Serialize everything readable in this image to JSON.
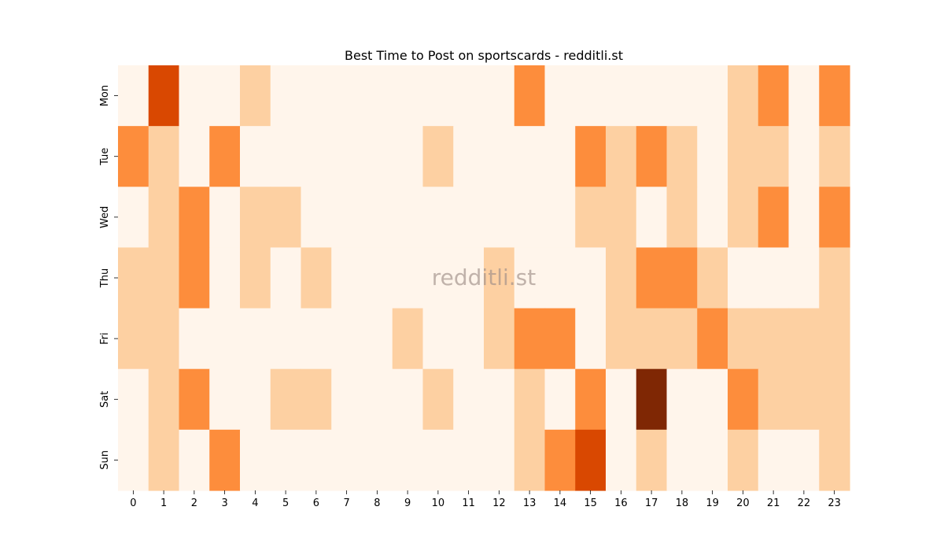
{
  "chart_data": {
    "type": "heatmap",
    "title": "Best Time to Post on sportscards - redditli.st",
    "watermark": "redditli.st",
    "xlabel": "",
    "ylabel": "",
    "x_categories": [
      "0",
      "1",
      "2",
      "3",
      "4",
      "5",
      "6",
      "7",
      "8",
      "9",
      "10",
      "11",
      "12",
      "13",
      "14",
      "15",
      "16",
      "17",
      "18",
      "19",
      "20",
      "21",
      "22",
      "23"
    ],
    "y_categories": [
      "Mon",
      "Tue",
      "Wed",
      "Thu",
      "Fri",
      "Sat",
      "Sun"
    ],
    "color_levels": [
      "#fff5eb",
      "#fdd0a2",
      "#fd8d3c",
      "#d94801",
      "#7f2704"
    ],
    "values": [
      [
        0,
        3,
        0,
        0,
        1,
        0,
        0,
        0,
        0,
        0,
        0,
        0,
        0,
        2,
        0,
        0,
        0,
        0,
        0,
        0,
        1,
        2,
        0,
        2
      ],
      [
        2,
        1,
        0,
        2,
        0,
        0,
        0,
        0,
        0,
        0,
        1,
        0,
        0,
        0,
        0,
        2,
        1,
        2,
        1,
        0,
        1,
        1,
        0,
        1
      ],
      [
        0,
        1,
        2,
        0,
        1,
        1,
        0,
        0,
        0,
        0,
        0,
        0,
        0,
        0,
        0,
        1,
        1,
        0,
        1,
        0,
        1,
        2,
        0,
        2
      ],
      [
        1,
        1,
        2,
        0,
        1,
        0,
        1,
        0,
        0,
        0,
        0,
        0,
        1,
        0,
        0,
        0,
        1,
        2,
        2,
        1,
        0,
        0,
        0,
        1
      ],
      [
        1,
        1,
        0,
        0,
        0,
        0,
        0,
        0,
        0,
        1,
        0,
        0,
        1,
        2,
        2,
        0,
        1,
        1,
        1,
        2,
        1,
        1,
        1,
        1
      ],
      [
        0,
        1,
        2,
        0,
        0,
        1,
        1,
        0,
        0,
        0,
        1,
        0,
        0,
        1,
        0,
        2,
        0,
        4,
        0,
        0,
        2,
        1,
        1,
        1
      ],
      [
        0,
        1,
        0,
        2,
        0,
        0,
        0,
        0,
        0,
        0,
        0,
        0,
        0,
        1,
        2,
        3,
        0,
        1,
        0,
        0,
        1,
        0,
        0,
        1
      ]
    ],
    "grid": false,
    "legend": "none"
  }
}
